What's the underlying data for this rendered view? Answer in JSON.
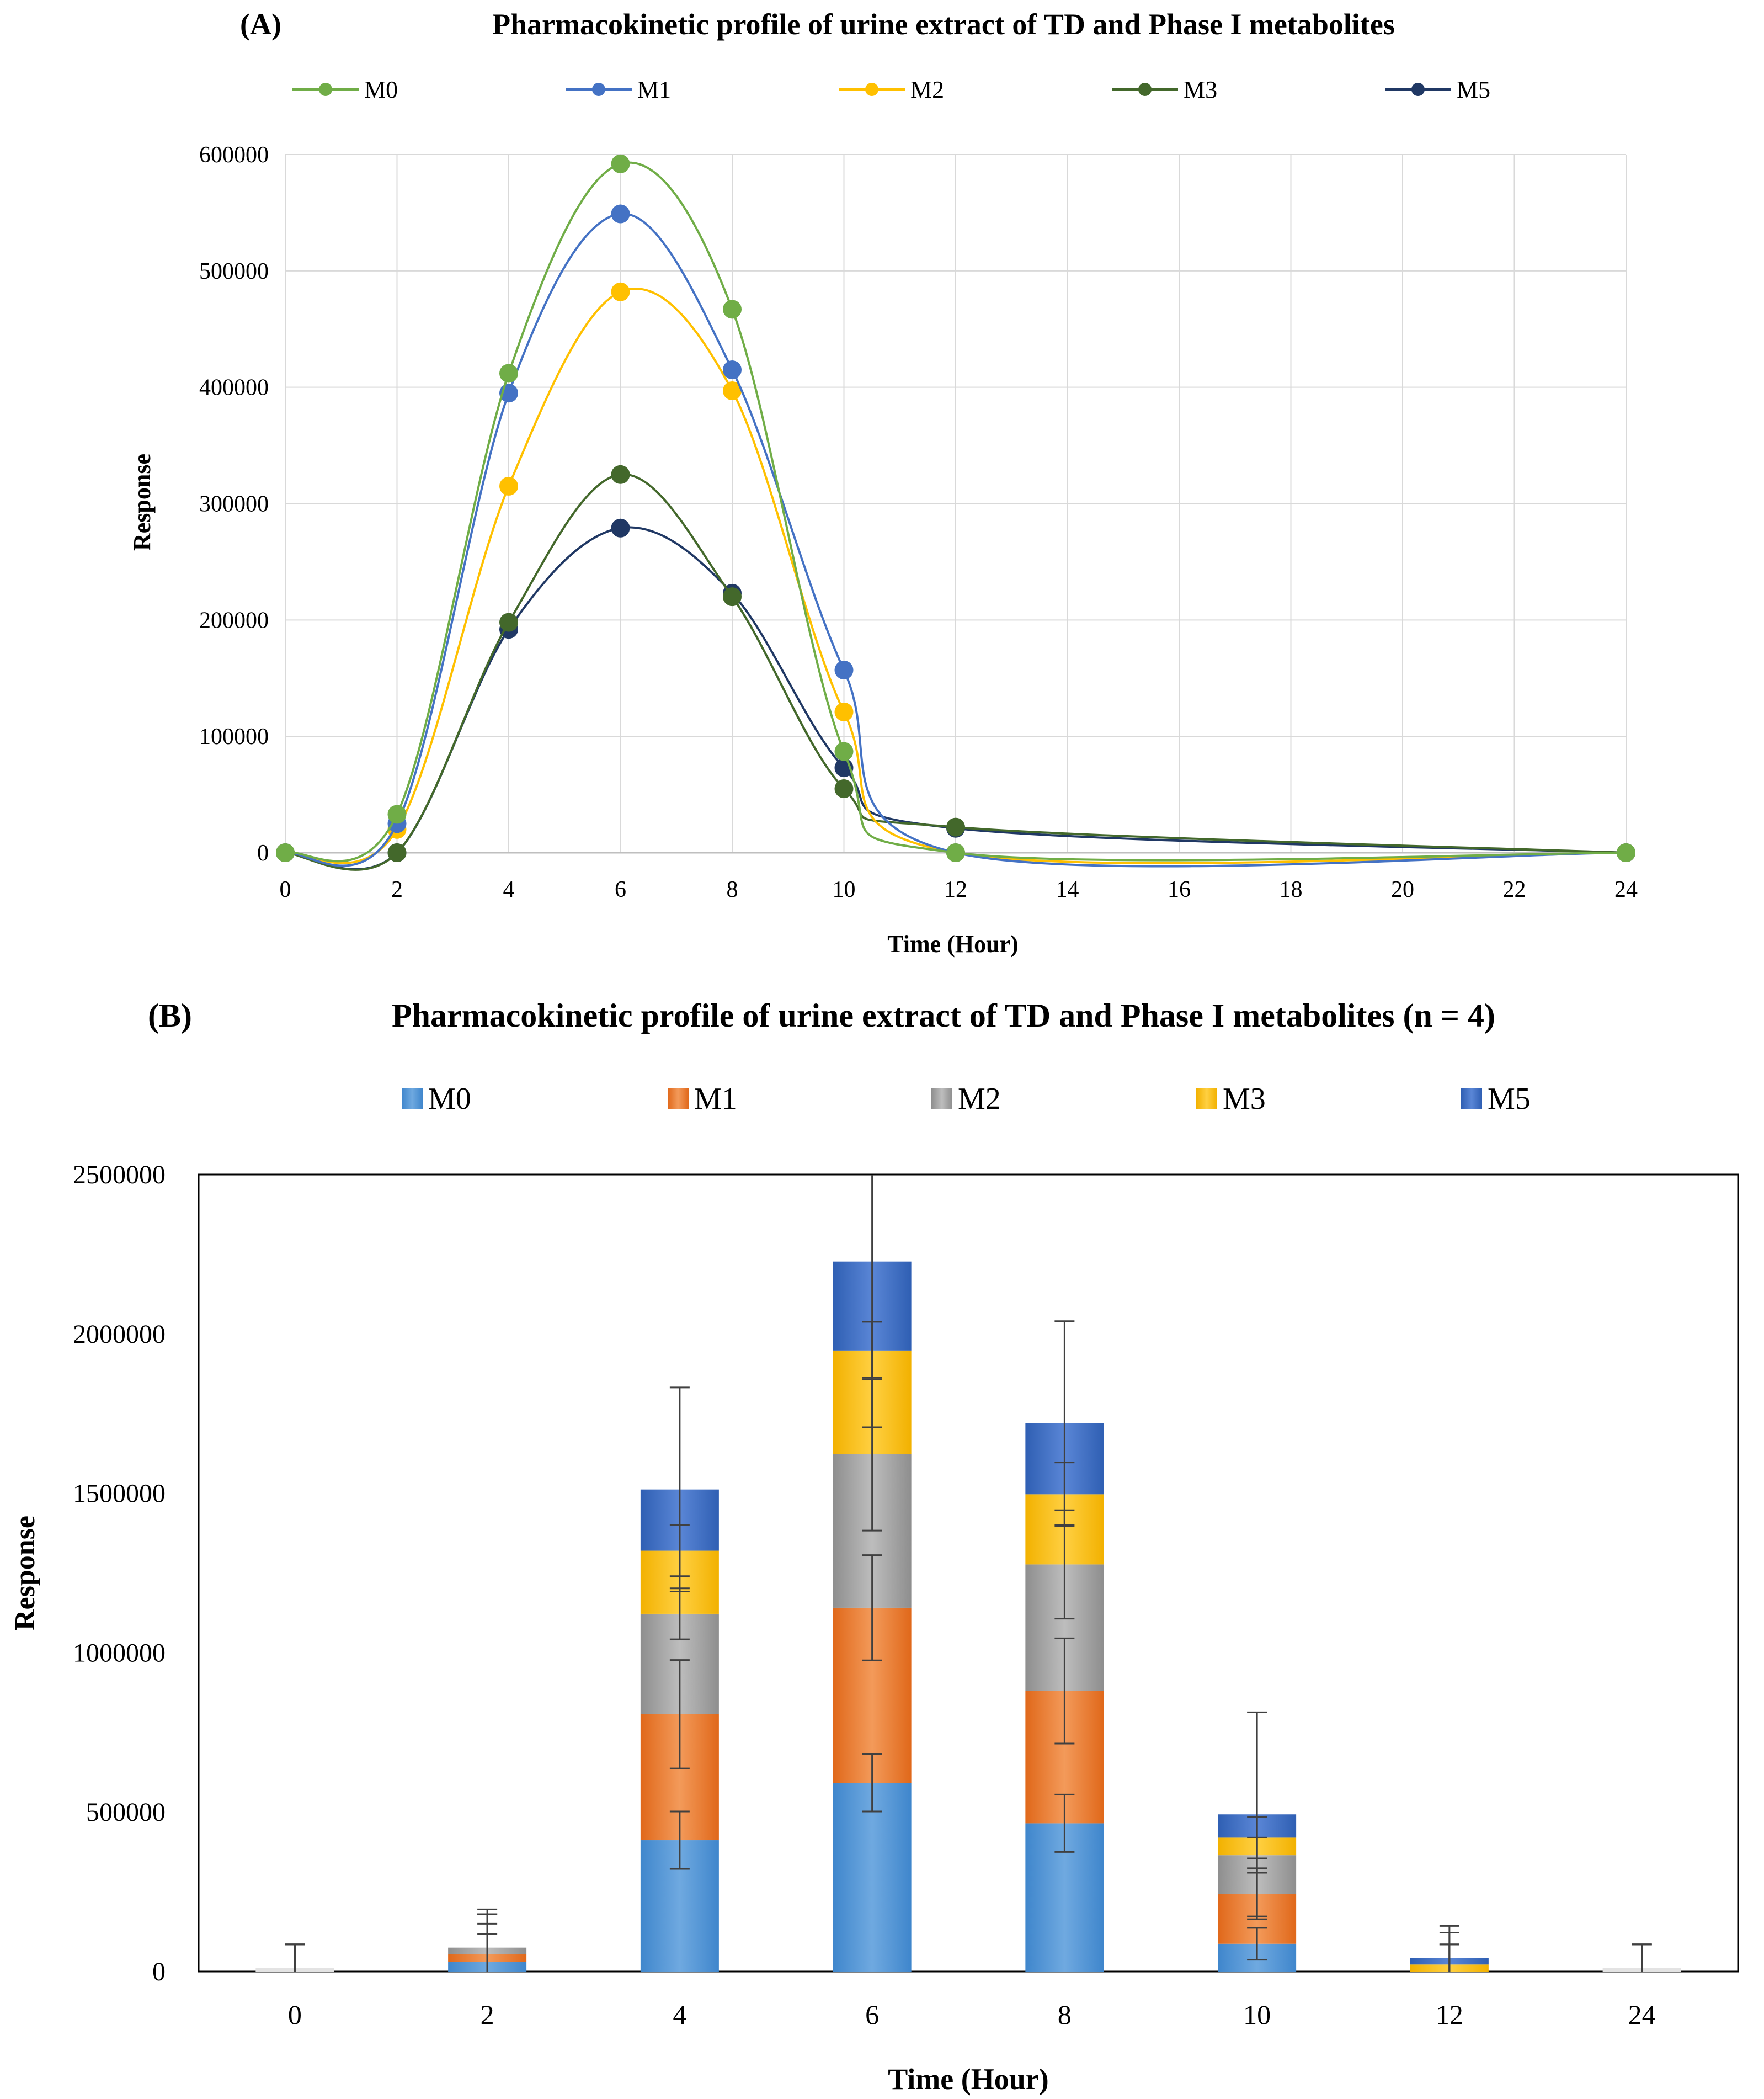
{
  "chart_data": [
    {
      "type": "line",
      "panel_label": "(A)",
      "title": "Pharmacokinetic profile of urine extract of TD and Phase I metabolites",
      "xlabel": "Time (Hour)",
      "ylabel": "Response",
      "xlim": [
        0,
        24
      ],
      "ylim": [
        0,
        600000
      ],
      "x_ticks": [
        0,
        2,
        4,
        6,
        8,
        10,
        12,
        14,
        16,
        18,
        20,
        22,
        24
      ],
      "y_ticks": [
        0,
        100000,
        200000,
        300000,
        400000,
        500000,
        600000
      ],
      "grid": true,
      "legend_position": "top",
      "x": [
        0,
        2,
        4,
        6,
        8,
        10,
        12,
        24
      ],
      "series": [
        {
          "name": "M0",
          "color": "#70ad47",
          "values": [
            0,
            33000,
            412000,
            592000,
            467000,
            87000,
            0,
            0
          ]
        },
        {
          "name": "M1",
          "color": "#4472c4",
          "values": [
            0,
            25000,
            395000,
            549000,
            415000,
            157000,
            0,
            0
          ]
        },
        {
          "name": "M2",
          "color": "#ffc000",
          "values": [
            0,
            20000,
            315000,
            482000,
            397000,
            121000,
            0,
            0
          ]
        },
        {
          "name": "M3",
          "color": "#43682b",
          "values": [
            0,
            0,
            198000,
            325000,
            220000,
            55000,
            22000,
            0
          ]
        },
        {
          "name": "M5",
          "color": "#203864",
          "values": [
            0,
            0,
            192000,
            279000,
            223000,
            73000,
            21000,
            0
          ]
        }
      ]
    },
    {
      "type": "bar",
      "stacked": true,
      "panel_label": "(B)",
      "title": "Pharmacokinetic profile of urine extract of TD and Phase I metabolites (n = 4)",
      "xlabel": "Time (Hour)",
      "ylabel": "Response",
      "categories": [
        "0",
        "2",
        "4",
        "6",
        "8",
        "10",
        "12",
        "24"
      ],
      "ylim": [
        0,
        2500000
      ],
      "y_ticks": [
        0,
        500000,
        1000000,
        1500000,
        2000000,
        2500000
      ],
      "grid": false,
      "legend_position": "top",
      "series": [
        {
          "name": "M0",
          "color": "#5b9bd5",
          "values": [
            0,
            30000,
            412000,
            592000,
            465000,
            87000,
            0,
            0
          ],
          "errors": [
            85000,
            88000,
            90000,
            90000,
            90000,
            50000,
            85000,
            85000
          ]
        },
        {
          "name": "M1",
          "color": "#ed7d31",
          "values": [
            0,
            25000,
            395000,
            549000,
            415000,
            157000,
            0,
            0
          ],
          "errors": [
            85000,
            95000,
            170000,
            165000,
            165000,
            80000,
            85000,
            85000
          ]
        },
        {
          "name": "M2",
          "color": "#a5a5a5",
          "values": [
            0,
            20000,
            315000,
            482000,
            397000,
            121000,
            0,
            0
          ],
          "errors": [
            85000,
            105000,
            80000,
            240000,
            170000,
            55000,
            85000,
            85000
          ]
        },
        {
          "name": "M3",
          "color": "#ffc000",
          "values": [
            0,
            0,
            198000,
            325000,
            220000,
            55000,
            22000,
            0
          ],
          "errors": [
            85000,
            105000,
            80000,
            90000,
            100000,
            65000,
            100000,
            85000
          ]
        },
        {
          "name": "M5",
          "color": "#4472c4",
          "values": [
            0,
            0,
            192000,
            279000,
            223000,
            73000,
            21000,
            0
          ],
          "errors": [
            85000,
            120000,
            320000,
            520000,
            320000,
            320000,
            100000,
            85000
          ]
        }
      ]
    }
  ]
}
